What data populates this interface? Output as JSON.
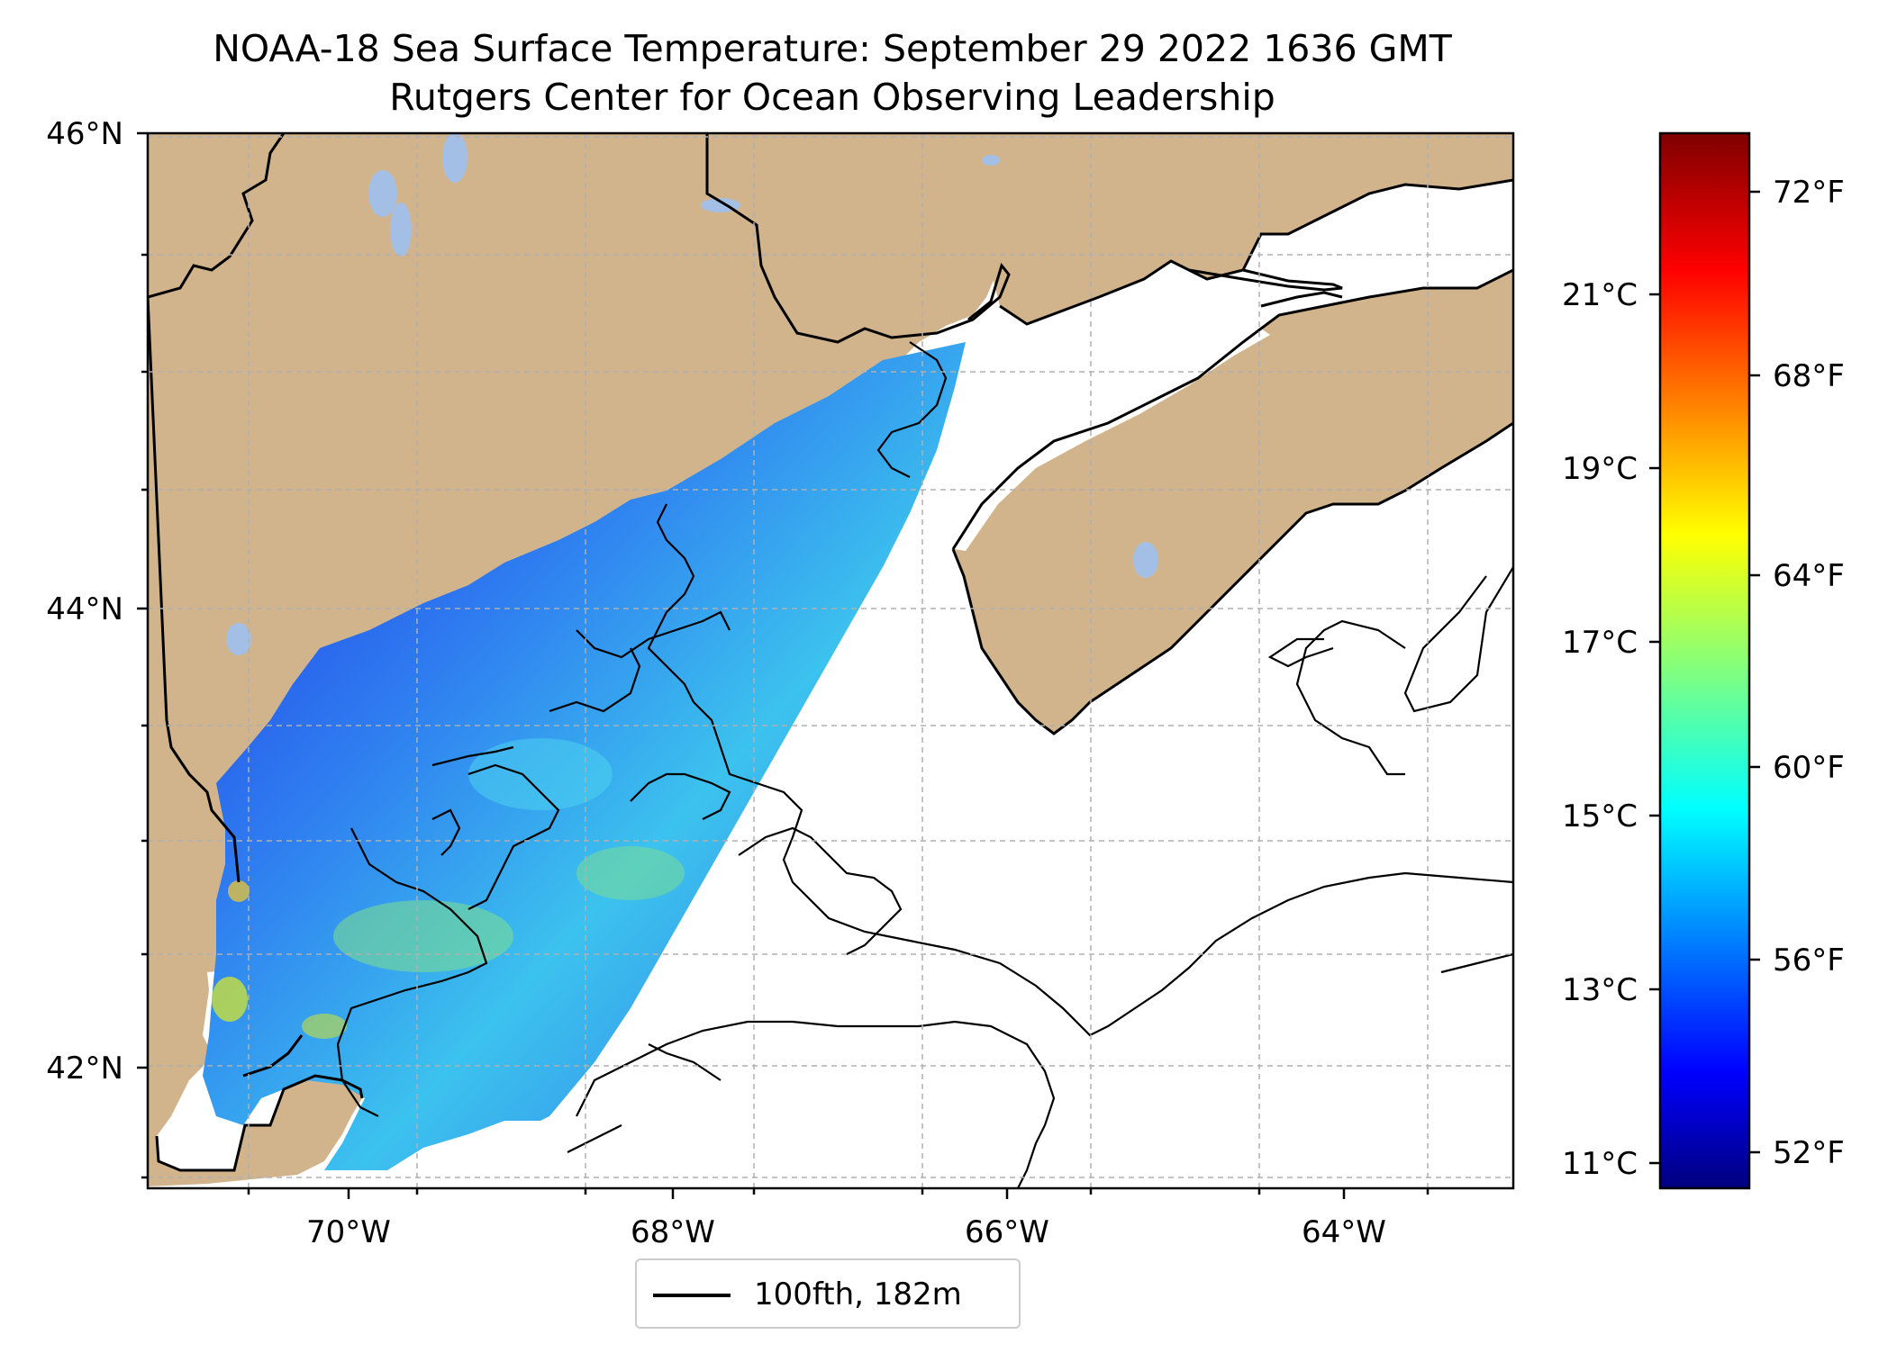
{
  "title": {
    "line1": "NOAA-18 Sea Surface Temperature: September 29 2022 1636 GMT",
    "line2": "Rutgers Center for Ocean Observing Leadership"
  },
  "map": {
    "lat_labels": [
      "46°N",
      "44°N",
      "42°N"
    ],
    "lon_labels": [
      "70°W",
      "68°W",
      "66°W",
      "64°W"
    ],
    "colors": {
      "land": "#d2b48c",
      "lakes": "#a4bfe6",
      "coast": "#000000",
      "grid": "#b0b0b0"
    }
  },
  "legend": {
    "label": "100fth, 182m"
  },
  "colorbar": {
    "celsius_labels": [
      "21°C",
      "19°C",
      "17°C",
      "15°C",
      "13°C",
      "11°C"
    ],
    "fahrenheit_labels": [
      "72°F",
      "68°F",
      "64°F",
      "60°F",
      "56°F",
      "52°F"
    ],
    "colormap": "jet"
  }
}
